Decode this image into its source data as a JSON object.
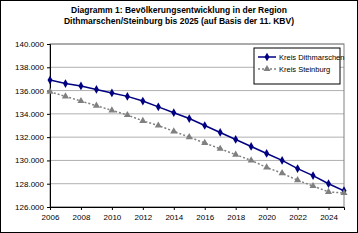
{
  "chart_data": {
    "type": "line",
    "title": "Diagramm 1: Bevölkerungsentwicklung in der Region Dithmarschen/Steinburg bis 2025 (auf Basis der 11. KBV)",
    "x": [
      2006,
      2007,
      2008,
      2009,
      2010,
      2011,
      2012,
      2013,
      2014,
      2015,
      2016,
      2017,
      2018,
      2019,
      2020,
      2021,
      2022,
      2023,
      2024,
      2025
    ],
    "series": [
      {
        "name": "Kreis Dithmarschen",
        "color": "#000080",
        "marker": "diamond",
        "line_style": "solid",
        "values": [
          136900,
          136600,
          136400,
          136100,
          135800,
          135500,
          135100,
          134600,
          134100,
          133600,
          133000,
          132400,
          131800,
          131200,
          130600,
          130000,
          129300,
          128700,
          128000,
          127400
        ]
      },
      {
        "name": "Kreis Steinburg",
        "color": "#808080",
        "marker": "triangle",
        "line_style": "dotted",
        "values": [
          135900,
          135500,
          135100,
          134700,
          134300,
          133900,
          133400,
          133000,
          132500,
          132000,
          131500,
          131000,
          130500,
          130000,
          129400,
          128900,
          128300,
          127800,
          127300,
          127200
        ]
      }
    ],
    "xlim": [
      2006,
      2025
    ],
    "xticks": [
      2006,
      2008,
      2010,
      2012,
      2014,
      2016,
      2018,
      2020,
      2022,
      2024
    ],
    "ylim": [
      126000,
      140000
    ],
    "yticks": [
      {
        "value": 126000,
        "label": "126.000"
      },
      {
        "value": 128000,
        "label": "128.000"
      },
      {
        "value": 130000,
        "label": "130.000"
      },
      {
        "value": 132000,
        "label": "132.000"
      },
      {
        "value": 134000,
        "label": "134.000"
      },
      {
        "value": 136000,
        "label": "136.000"
      },
      {
        "value": 138000,
        "label": "138.000"
      },
      {
        "value": 140000,
        "label": "140.000"
      }
    ],
    "grid": true,
    "legend": "top-right"
  }
}
